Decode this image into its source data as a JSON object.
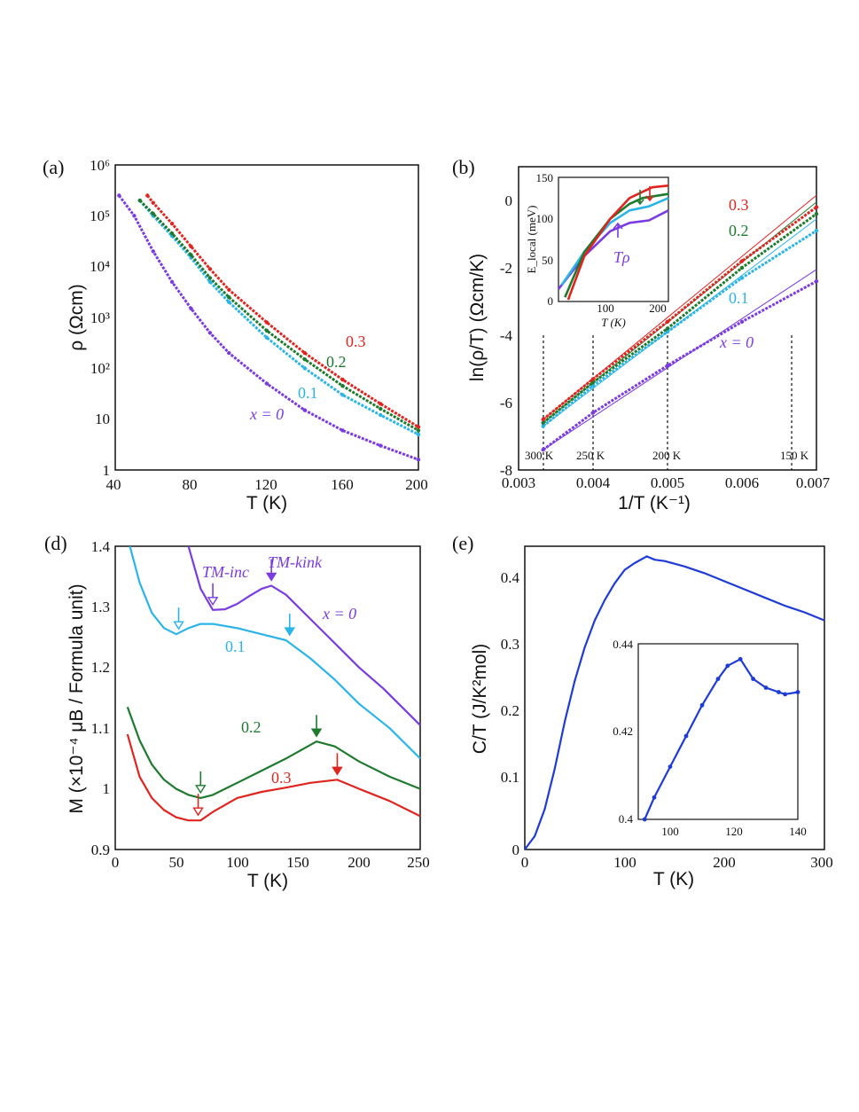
{
  "colors": {
    "x0": "#7a3be0",
    "x01": "#2ab4e8",
    "x02": "#1e7a2e",
    "x03": "#e0241f",
    "heat": "#1f3bd6"
  },
  "chart_data": [
    {
      "panel": "(a)",
      "type": "line",
      "ylabel": "ρ (Ωcm)",
      "xlabel": "T (K)",
      "xlim": [
        40,
        200
      ],
      "ylim": [
        1,
        1000000
      ],
      "yscale": "log",
      "xticks": [
        "40",
        "80",
        "120",
        "160",
        "200"
      ],
      "yticks": [
        "1",
        "10",
        "10²",
        "10³",
        "10⁴",
        "10⁵",
        "10⁶"
      ],
      "series": [
        {
          "name": "x = 0",
          "label": "x = 0",
          "color": "x0",
          "x": [
            42,
            50,
            60,
            70,
            80,
            90,
            100,
            120,
            140,
            160,
            180,
            200
          ],
          "y": [
            250000,
            100000,
            20000,
            5000,
            1500,
            500,
            200,
            50,
            15,
            6,
            3,
            1.6
          ]
        },
        {
          "name": "0.1",
          "label": "0.1",
          "color": "x01",
          "x": [
            53,
            60,
            70,
            80,
            90,
            100,
            120,
            140,
            160,
            180,
            200
          ],
          "y": [
            200000,
            100000,
            40000,
            15000,
            5000,
            2000,
            400,
            100,
            30,
            12,
            5
          ]
        },
        {
          "name": "0.2",
          "label": "0.2",
          "color": "x02",
          "x": [
            53,
            60,
            70,
            80,
            90,
            100,
            120,
            140,
            160,
            180,
            200
          ],
          "y": [
            200000,
            110000,
            45000,
            17000,
            6000,
            2500,
            550,
            150,
            45,
            16,
            6
          ]
        },
        {
          "name": "0.3",
          "label": "0.3",
          "color": "x03",
          "x": [
            57,
            60,
            70,
            80,
            90,
            100,
            120,
            140,
            160,
            180,
            200
          ],
          "y": [
            250000,
            180000,
            70000,
            25000,
            9000,
            3500,
            800,
            200,
            60,
            20,
            7
          ]
        }
      ]
    },
    {
      "panel": "(b)",
      "type": "line",
      "ylabel": "ln(ρ/T) (Ωcm/K)",
      "xlabel": "1/T (K⁻¹)",
      "xlim": [
        0.003,
        0.007
      ],
      "ylim": [
        -8,
        1
      ],
      "xticks": [
        "0.003",
        "0.004",
        "0.005",
        "0.006",
        "0.007"
      ],
      "yticks": [
        "-8",
        "-6",
        "-4",
        "-2",
        "0"
      ],
      "temp_markers": [
        {
          "label": "300 K",
          "x": 0.003333
        },
        {
          "label": "250 K",
          "x": 0.004
        },
        {
          "label": "200 K",
          "x": 0.005
        },
        {
          "label": "150 K",
          "x": 0.006667
        }
      ],
      "series": [
        {
          "name": "x = 0",
          "label": "x = 0",
          "color": "x0",
          "x": [
            0.00333,
            0.004,
            0.005,
            0.006,
            0.007
          ],
          "y": [
            -7.4,
            -6.3,
            -4.9,
            -3.6,
            -2.4
          ]
        },
        {
          "name": "0.1",
          "label": "0.1",
          "color": "x01",
          "x": [
            0.00333,
            0.004,
            0.005,
            0.006,
            0.007
          ],
          "y": [
            -6.7,
            -5.5,
            -3.9,
            -2.3,
            -0.9
          ]
        },
        {
          "name": "0.2",
          "label": "0.2",
          "color": "x02",
          "x": [
            0.00333,
            0.004,
            0.005,
            0.006,
            0.007
          ],
          "y": [
            -6.6,
            -5.4,
            -3.8,
            -2.0,
            -0.4
          ]
        },
        {
          "name": "0.3",
          "label": "0.3",
          "color": "x03",
          "x": [
            0.00333,
            0.004,
            0.005,
            0.006,
            0.007
          ],
          "y": [
            -6.5,
            -5.3,
            -3.6,
            -1.8,
            -0.2
          ]
        }
      ],
      "inset": {
        "ylabel": "E_local (meV)",
        "xlabel": "T (K)",
        "xlim": [
          40,
          210
        ],
        "ylim": [
          0,
          150
        ],
        "xticks": [
          "100",
          "200"
        ],
        "yticks": [
          "0",
          "50",
          "100",
          "150"
        ],
        "annotation": "Tρ",
        "series": [
          {
            "name": "x = 0",
            "color": "x0",
            "x": [
              40,
              80,
              120,
              150,
              180,
              210
            ],
            "y": [
              15,
              55,
              85,
              95,
              98,
              110
            ]
          },
          {
            "name": "0.1",
            "color": "x01",
            "x": [
              45,
              80,
              120,
              150,
              180,
              210
            ],
            "y": [
              20,
              60,
              95,
              110,
              115,
              125
            ]
          },
          {
            "name": "0.2",
            "color": "x02",
            "x": [
              50,
              80,
              120,
              150,
              170,
              210
            ],
            "y": [
              5,
              60,
              100,
              118,
              125,
              130
            ]
          },
          {
            "name": "0.3",
            "color": "x03",
            "x": [
              55,
              80,
              120,
              150,
              185,
              210
            ],
            "y": [
              2,
              55,
              100,
              125,
              138,
              140
            ]
          }
        ]
      }
    },
    {
      "panel": "(d)",
      "type": "line",
      "ylabel": "M (×10⁻⁴ μB / Formula unit)",
      "xlabel": "T (K)",
      "xlim": [
        0,
        250
      ],
      "ylim": [
        0.9,
        1.4
      ],
      "xticks": [
        "0",
        "50",
        "100",
        "150",
        "200",
        "250"
      ],
      "yticks": [
        "0.9",
        "1",
        "1.1",
        "1.2",
        "1.3",
        "1.4"
      ],
      "annotations": [
        "TM-inc",
        "TM-kink"
      ],
      "series": [
        {
          "name": "x = 0",
          "label": "x = 0",
          "color": "x0",
          "x": [
            60,
            70,
            80,
            90,
            100,
            110,
            120,
            128,
            140,
            160,
            180,
            200,
            220,
            250
          ],
          "y": [
            1.4,
            1.33,
            1.295,
            1.296,
            1.305,
            1.318,
            1.33,
            1.335,
            1.32,
            1.28,
            1.24,
            1.2,
            1.165,
            1.105
          ]
        },
        {
          "name": "0.1",
          "label": "0.1",
          "color": "x01",
          "x": [
            12,
            20,
            30,
            40,
            50,
            60,
            70,
            80,
            100,
            120,
            140,
            160,
            180,
            200,
            225,
            250
          ],
          "y": [
            1.4,
            1.34,
            1.29,
            1.265,
            1.255,
            1.265,
            1.272,
            1.272,
            1.265,
            1.255,
            1.245,
            1.215,
            1.18,
            1.14,
            1.1,
            1.05
          ]
        },
        {
          "name": "0.2",
          "label": "0.2",
          "color": "x02",
          "x": [
            10,
            20,
            30,
            40,
            50,
            60,
            70,
            80,
            100,
            120,
            140,
            165,
            180,
            200,
            225,
            250
          ],
          "y": [
            1.135,
            1.08,
            1.04,
            1.015,
            1.0,
            0.99,
            0.985,
            0.99,
            1.01,
            1.03,
            1.05,
            1.078,
            1.07,
            1.045,
            1.02,
            1.0
          ]
        },
        {
          "name": "0.3",
          "label": "0.3",
          "color": "x03",
          "x": [
            10,
            20,
            30,
            40,
            50,
            60,
            70,
            80,
            100,
            120,
            140,
            160,
            182,
            200,
            225,
            250
          ],
          "y": [
            1.09,
            1.02,
            0.985,
            0.965,
            0.953,
            0.948,
            0.948,
            0.962,
            0.985,
            0.995,
            1.002,
            1.01,
            1.015,
            1.0,
            0.98,
            0.955
          ]
        }
      ]
    },
    {
      "panel": "(e)",
      "type": "line",
      "ylabel": "C/T (J/K²mol)",
      "xlabel": "T (K)",
      "xlim": [
        0,
        300
      ],
      "ylim": [
        0,
        0.45
      ],
      "xticks": [
        "0",
        "100",
        "200",
        "300"
      ],
      "yticks": [
        "0",
        "0.1",
        "0.2",
        "0.3",
        "0.4"
      ],
      "series": [
        {
          "name": "C/T",
          "color": "heat",
          "x": [
            0,
            5,
            10,
            20,
            30,
            40,
            50,
            60,
            70,
            80,
            90,
            100,
            110,
            122,
            130,
            140,
            160,
            180,
            200,
            220,
            240,
            260,
            280,
            300
          ],
          "y": [
            0.0,
            0.01,
            0.02,
            0.06,
            0.12,
            0.19,
            0.25,
            0.3,
            0.34,
            0.37,
            0.395,
            0.415,
            0.425,
            0.435,
            0.43,
            0.428,
            0.42,
            0.41,
            0.398,
            0.386,
            0.374,
            0.362,
            0.352,
            0.34
          ]
        }
      ],
      "inset": {
        "xlim": [
          90,
          140
        ],
        "ylim": [
          0.4,
          0.44
        ],
        "xticks": [
          "100",
          "120",
          "140"
        ],
        "yticks": [
          "0.4",
          "0.42",
          "0.44"
        ],
        "series": [
          {
            "name": "C/T",
            "color": "heat",
            "x": [
              92,
              95,
              100,
              105,
              110,
              115,
              118,
              122,
              126,
              130,
              134,
              136,
              140
            ],
            "y": [
              0.4,
              0.405,
              0.412,
              0.419,
              0.426,
              0.432,
              0.435,
              0.4365,
              0.432,
              0.43,
              0.429,
              0.4285,
              0.429
            ]
          }
        ]
      }
    }
  ]
}
